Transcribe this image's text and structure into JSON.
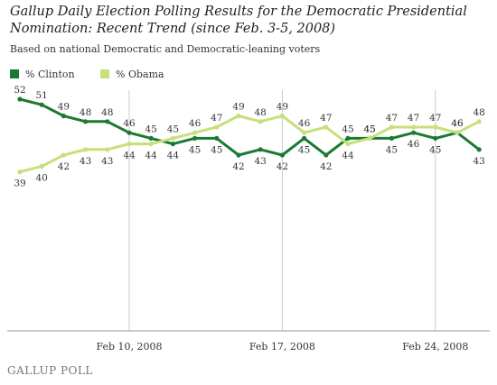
{
  "header": {
    "title": "Gallup Daily Election Polling Results for the Democratic Presidential Nomination: Recent Trend (since Feb. 3-5, 2008)",
    "subtitle": "Based on national Democratic and Democratic-leaning voters"
  },
  "footer": {
    "source": "GALLUP POLL"
  },
  "colors": {
    "clinton": "#1a7a30",
    "obama": "#c6e07a",
    "grid": "#cccccc",
    "axis": "#999999"
  },
  "chart_data": {
    "type": "line",
    "title": "Gallup Daily Election Polling Results for the Democratic Presidential Nomination: Recent Trend (since Feb. 3-5, 2008)",
    "subtitle": "Based on national Democratic and Democratic-leaning voters",
    "x": [
      "Feb 5, 2008",
      "Feb 6, 2008",
      "Feb 7, 2008",
      "Feb 8, 2008",
      "Feb 9, 2008",
      "Feb 10, 2008",
      "Feb 11, 2008",
      "Feb 12, 2008",
      "Feb 13, 2008",
      "Feb 14, 2008",
      "Feb 15, 2008",
      "Feb 16, 2008",
      "Feb 17, 2008",
      "Feb 18, 2008",
      "Feb 19, 2008",
      "Feb 20, 2008",
      "Feb 21, 2008",
      "Feb 22, 2008",
      "Feb 23, 2008",
      "Feb 24, 2008",
      "Feb 25, 2008",
      "Feb 26, 2008"
    ],
    "x_tick_labels": [
      "Feb 10, 2008",
      "Feb 17, 2008",
      "Feb 24, 2008"
    ],
    "series": [
      {
        "name": "% Clinton",
        "color": "#1a7a30",
        "values": [
          52,
          51,
          49,
          48,
          48,
          46,
          45,
          44,
          45,
          45,
          42,
          43,
          42,
          45,
          42,
          45,
          45,
          45,
          46,
          45,
          46,
          43
        ]
      },
      {
        "name": "% Obama",
        "color": "#c6e07a",
        "values": [
          39,
          40,
          42,
          43,
          43,
          44,
          44,
          45,
          46,
          47,
          49,
          48,
          49,
          46,
          47,
          44,
          45,
          47,
          47,
          47,
          46,
          48
        ]
      }
    ],
    "ylim": [
      20,
      60
    ],
    "grid": true,
    "legend": "top-left"
  }
}
